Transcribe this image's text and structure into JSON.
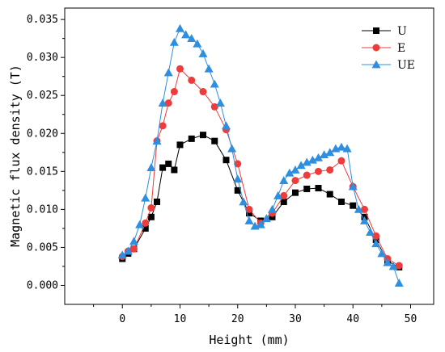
{
  "chart_data": {
    "type": "line",
    "xlabel": "Height (mm)",
    "ylabel": "Magnetic flux density (T)",
    "xlim": [
      -10,
      54
    ],
    "ylim": [
      -0.0025,
      0.0365
    ],
    "x_ticks": [
      0,
      10,
      20,
      30,
      40,
      50
    ],
    "y_ticks": [
      0.0,
      0.005,
      0.01,
      0.015,
      0.02,
      0.025,
      0.03,
      0.035
    ],
    "y_tick_labels": [
      "0.000",
      "0.005",
      "0.010",
      "0.015",
      "0.020",
      "0.025",
      "0.030",
      "0.035"
    ],
    "x_tick_labels": [
      "0",
      "10",
      "20",
      "30",
      "40",
      "50"
    ],
    "grid": false,
    "legend_position": "top-right",
    "series": [
      {
        "name": "U",
        "color": "#000000",
        "marker": "square",
        "x": [
          0,
          1,
          2,
          4,
          5,
          6,
          7,
          8,
          9,
          10,
          12,
          14,
          16,
          18,
          20,
          22,
          24,
          26,
          28,
          30,
          32,
          34,
          36,
          38,
          40,
          42,
          44,
          46,
          48
        ],
        "y": [
          0.0035,
          0.0042,
          0.0048,
          0.0075,
          0.009,
          0.011,
          0.0155,
          0.016,
          0.0152,
          0.0185,
          0.0193,
          0.0198,
          0.019,
          0.0165,
          0.0125,
          0.0095,
          0.0085,
          0.009,
          0.011,
          0.0122,
          0.0127,
          0.0128,
          0.012,
          0.011,
          0.0105,
          0.009,
          0.006,
          0.0032,
          0.0024
        ]
      },
      {
        "name": "E",
        "color": "#ee3b3b",
        "marker": "circle",
        "x": [
          0,
          1,
          2,
          4,
          5,
          6,
          7,
          8,
          9,
          10,
          12,
          14,
          16,
          18,
          20,
          22,
          24,
          26,
          28,
          30,
          32,
          34,
          36,
          38,
          40,
          42,
          44,
          46,
          48
        ],
        "y": [
          0.0038,
          0.0045,
          0.0048,
          0.0082,
          0.0102,
          0.019,
          0.021,
          0.024,
          0.0255,
          0.0285,
          0.027,
          0.0255,
          0.0235,
          0.0205,
          0.016,
          0.01,
          0.0082,
          0.0095,
          0.0118,
          0.0138,
          0.0145,
          0.015,
          0.0152,
          0.0164,
          0.013,
          0.01,
          0.0065,
          0.0035,
          0.0026
        ]
      },
      {
        "name": "UE",
        "color": "#2e8fe0",
        "marker": "triangle",
        "x": [
          0,
          1,
          2,
          3,
          4,
          5,
          6,
          7,
          8,
          9,
          10,
          11,
          12,
          13,
          14,
          15,
          16,
          17,
          18,
          19,
          20,
          21,
          22,
          23,
          24,
          25,
          26,
          27,
          28,
          29,
          30,
          31,
          32,
          33,
          34,
          35,
          36,
          37,
          38,
          39,
          40,
          41,
          42,
          43,
          44,
          45,
          46,
          47,
          48
        ],
        "y": [
          0.004,
          0.0045,
          0.0058,
          0.008,
          0.0115,
          0.0155,
          0.019,
          0.024,
          0.028,
          0.032,
          0.0338,
          0.033,
          0.0325,
          0.0318,
          0.0305,
          0.0285,
          0.0265,
          0.024,
          0.021,
          0.018,
          0.014,
          0.011,
          0.0085,
          0.0078,
          0.008,
          0.0088,
          0.01,
          0.0118,
          0.0138,
          0.0148,
          0.0152,
          0.0158,
          0.0162,
          0.0165,
          0.0168,
          0.0172,
          0.0175,
          0.018,
          0.0182,
          0.018,
          0.013,
          0.01,
          0.0085,
          0.007,
          0.0055,
          0.0042,
          0.003,
          0.0025,
          0.0003
        ]
      }
    ]
  }
}
